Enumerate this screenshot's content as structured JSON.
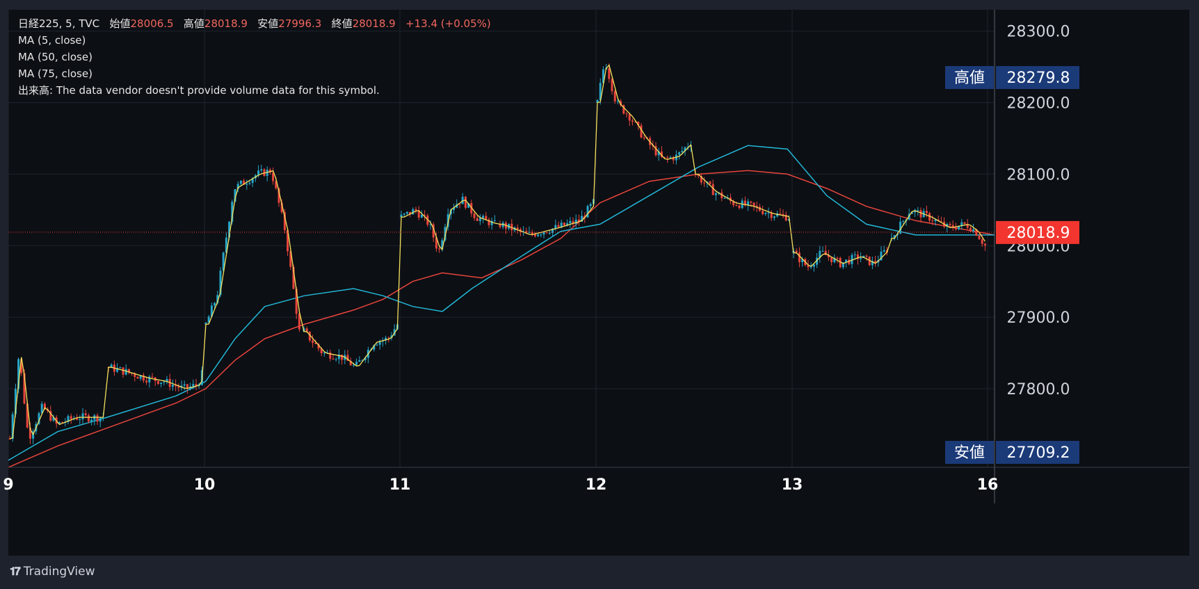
{
  "brand": {
    "logo_icon": "tradingview-logo-icon",
    "name": "TradingView"
  },
  "legend": {
    "symbol": "日経225, 5, TVC",
    "open_label": "始値",
    "open_value": "28006.5",
    "high_label": "高値",
    "high_value": "28018.9",
    "low_label": "安値",
    "low_value": "27996.3",
    "close_label": "終値",
    "close_value": "28018.9",
    "change": "+13.4 (+0.05%)",
    "ma1": "MA (5, close)",
    "ma2": "MA (50, close)",
    "ma3": "MA (75, close)",
    "volume": "出来高: The data vendor doesn't provide volume data for this symbol."
  },
  "colors": {
    "up": "#26a6c9",
    "down": "#e8453c",
    "ma5": "#f5e05a",
    "ma50": "#22b7d6",
    "ma75": "#e8453c",
    "price_badge": "#f2362f",
    "label_badge": "#1b3a78"
  },
  "chart_data": {
    "type": "candlestick",
    "title": "日経225, 5, TVC",
    "ylim": [
      27695,
      28325
    ],
    "y_ticks": [
      "27800.0",
      "27900.0",
      "28000.0",
      "28100.0",
      "28200.0",
      "28300.0"
    ],
    "x_ticks": [
      "9",
      "10",
      "11",
      "12",
      "13",
      "16"
    ],
    "last_price": "28018.9",
    "high_label": "高値",
    "high_value": "28279.8",
    "low_label": "安値",
    "low_value": "27709.2",
    "sessions": [
      {
        "day": "9",
        "path": [
          [
            0,
            27730
          ],
          [
            0.1,
            27850
          ],
          [
            0.2,
            27730
          ],
          [
            0.35,
            27775
          ],
          [
            0.5,
            27750
          ],
          [
            0.7,
            27760
          ],
          [
            1,
            27760
          ]
        ]
      },
      {
        "day": "9b",
        "path": [
          [
            0,
            27830
          ],
          [
            0.15,
            27825
          ],
          [
            0.4,
            27815
          ],
          [
            0.6,
            27810
          ],
          [
            0.8,
            27800
          ],
          [
            0.95,
            27805
          ],
          [
            1,
            27820
          ]
        ]
      },
      {
        "day": "10",
        "path": [
          [
            0,
            27890
          ],
          [
            0.12,
            27930
          ],
          [
            0.3,
            28080
          ],
          [
            0.55,
            28100
          ],
          [
            0.7,
            28105
          ],
          [
            0.85,
            28020
          ],
          [
            1,
            27880
          ]
        ]
      },
      {
        "day": "10b",
        "path": [
          [
            0,
            27880
          ],
          [
            0.2,
            27850
          ],
          [
            0.4,
            27845
          ],
          [
            0.55,
            27830
          ],
          [
            0.75,
            27865
          ],
          [
            0.9,
            27870
          ],
          [
            1,
            27890
          ]
        ]
      },
      {
        "day": "11",
        "path": [
          [
            0,
            28040
          ],
          [
            0.15,
            28050
          ],
          [
            0.3,
            28030
          ],
          [
            0.4,
            27990
          ],
          [
            0.5,
            28050
          ],
          [
            0.65,
            28065
          ],
          [
            0.8,
            28040
          ],
          [
            1,
            28030
          ]
        ]
      },
      {
        "day": "11b",
        "path": [
          [
            0,
            28030
          ],
          [
            0.3,
            28015
          ],
          [
            0.6,
            28025
          ],
          [
            0.85,
            28035
          ],
          [
            1,
            28060
          ]
        ]
      },
      {
        "day": "12",
        "path": [
          [
            0,
            28200
          ],
          [
            0.08,
            28260
          ],
          [
            0.2,
            28200
          ],
          [
            0.35,
            28180
          ],
          [
            0.5,
            28150
          ],
          [
            0.7,
            28120
          ],
          [
            0.85,
            28125
          ],
          [
            1,
            28145
          ]
        ]
      },
      {
        "day": "12b",
        "path": [
          [
            0,
            28100
          ],
          [
            0.2,
            28075
          ],
          [
            0.4,
            28060
          ],
          [
            0.6,
            28055
          ],
          [
            0.8,
            28045
          ],
          [
            1,
            28040
          ]
        ]
      },
      {
        "day": "13",
        "path": [
          [
            0,
            27990
          ],
          [
            0.15,
            27970
          ],
          [
            0.3,
            27990
          ],
          [
            0.5,
            27975
          ],
          [
            0.7,
            27985
          ],
          [
            0.85,
            27975
          ],
          [
            1,
            27995
          ]
        ]
      },
      {
        "day": "13b",
        "path": [
          [
            0,
            28010
          ],
          [
            0.2,
            28050
          ],
          [
            0.4,
            28040
          ],
          [
            0.6,
            28025
          ],
          [
            0.8,
            28030
          ],
          [
            0.9,
            28020
          ],
          [
            1,
            28000
          ]
        ]
      }
    ],
    "ma50": [
      [
        0,
        27700
      ],
      [
        0.05,
        27740
      ],
      [
        0.1,
        27760
      ],
      [
        0.17,
        27790
      ],
      [
        0.2,
        27810
      ],
      [
        0.23,
        27870
      ],
      [
        0.26,
        27915
      ],
      [
        0.3,
        27930
      ],
      [
        0.35,
        27940
      ],
      [
        0.38,
        27930
      ],
      [
        0.41,
        27915
      ],
      [
        0.44,
        27908
      ],
      [
        0.47,
        27940
      ],
      [
        0.52,
        27985
      ],
      [
        0.56,
        28020
      ],
      [
        0.6,
        28030
      ],
      [
        0.65,
        28070
      ],
      [
        0.7,
        28110
      ],
      [
        0.75,
        28140
      ],
      [
        0.79,
        28135
      ],
      [
        0.83,
        28070
      ],
      [
        0.87,
        28030
      ],
      [
        0.92,
        28015
      ],
      [
        1,
        28015
      ]
    ],
    "ma75": [
      [
        0,
        27690
      ],
      [
        0.05,
        27720
      ],
      [
        0.1,
        27745
      ],
      [
        0.17,
        27780
      ],
      [
        0.2,
        27800
      ],
      [
        0.23,
        27840
      ],
      [
        0.26,
        27870
      ],
      [
        0.3,
        27890
      ],
      [
        0.35,
        27910
      ],
      [
        0.38,
        27925
      ],
      [
        0.41,
        27950
      ],
      [
        0.44,
        27962
      ],
      [
        0.48,
        27955
      ],
      [
        0.52,
        27980
      ],
      [
        0.56,
        28010
      ],
      [
        0.6,
        28060
      ],
      [
        0.65,
        28090
      ],
      [
        0.7,
        28100
      ],
      [
        0.75,
        28105
      ],
      [
        0.79,
        28100
      ],
      [
        0.83,
        28080
      ],
      [
        0.87,
        28055
      ],
      [
        0.92,
        28035
      ],
      [
        1,
        28015
      ]
    ]
  }
}
